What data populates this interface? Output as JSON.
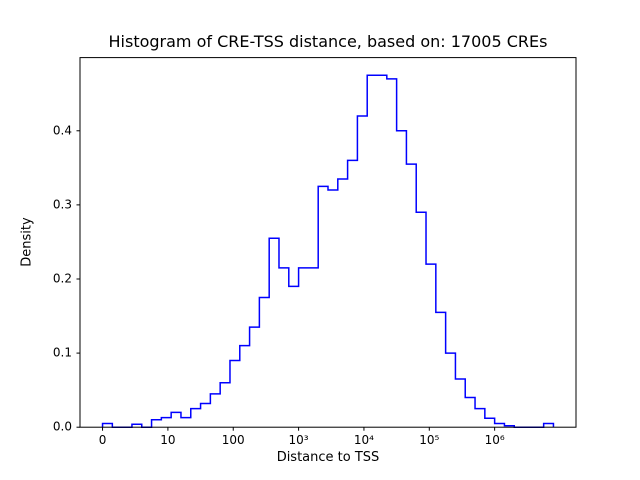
{
  "chart_data": {
    "type": "histogram-step",
    "title": "Histogram of CRE-TSS distance, based on: 17005 CREs",
    "xlabel": "Distance to TSS",
    "ylabel": "Density",
    "line_color": "#0000ff",
    "axis_color": "#000000",
    "x_scale": "symlog",
    "linthresh": 10,
    "grid": false,
    "legend": "none",
    "x_ticks": [
      {
        "label": "0",
        "pos": 0
      },
      {
        "label": "10",
        "pos": 1
      },
      {
        "label": "100",
        "pos": 2
      },
      {
        "label": "10³",
        "pos": 3
      },
      {
        "label": "10⁴",
        "pos": 4
      },
      {
        "label": "10⁵",
        "pos": 5
      },
      {
        "label": "10⁶",
        "pos": 6
      }
    ],
    "y_ticks": [
      {
        "label": "0.0",
        "value": 0.0
      },
      {
        "label": "0.1",
        "value": 0.1
      },
      {
        "label": "0.2",
        "value": 0.2
      },
      {
        "label": "0.3",
        "value": 0.3
      },
      {
        "label": "0.4",
        "value": 0.4
      }
    ],
    "xlim_pos": [
      -0.345,
      7.245
    ],
    "ylim": [
      0,
      0.49875
    ],
    "bins": {
      "note": "pos is symlog-transformed distance: pos = x/10 for x<=10, else 1+log10(x/10); equal-width bins in pos space",
      "start_pos": 0.0,
      "width_pos": 0.15,
      "densities": [
        0.005,
        0.0,
        0.0,
        0.004,
        0.0,
        0.01,
        0.013,
        0.02,
        0.013,
        0.025,
        0.032,
        0.045,
        0.06,
        0.09,
        0.11,
        0.135,
        0.175,
        0.255,
        0.215,
        0.19,
        0.215,
        0.215,
        0.325,
        0.32,
        0.335,
        0.36,
        0.42,
        0.475,
        0.475,
        0.47,
        0.4,
        0.355,
        0.29,
        0.22,
        0.155,
        0.1,
        0.065,
        0.04,
        0.025,
        0.012,
        0.005,
        0.002,
        0.0,
        0.0,
        0.0,
        0.005
      ]
    }
  }
}
